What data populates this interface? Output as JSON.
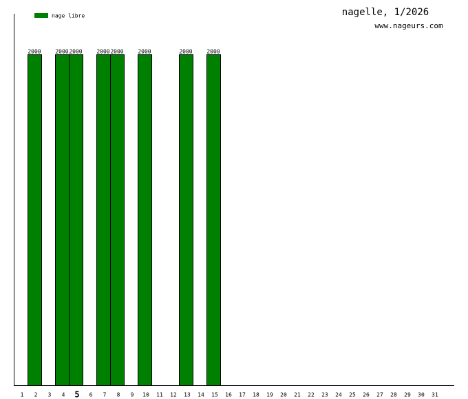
{
  "chart_data": {
    "type": "bar",
    "title": "nagelle, 1/2026",
    "subtitle": "www.nageurs.com",
    "categories": [
      "1",
      "2",
      "3",
      "4",
      "5",
      "6",
      "7",
      "8",
      "9",
      "10",
      "11",
      "12",
      "13",
      "14",
      "15",
      "16",
      "17",
      "18",
      "19",
      "20",
      "21",
      "22",
      "23",
      "24",
      "25",
      "26",
      "27",
      "28",
      "29",
      "30",
      "31"
    ],
    "series": [
      {
        "name": "nage libre",
        "color": "#008000",
        "values": [
          null,
          2000,
          null,
          2000,
          2000,
          null,
          2000,
          2000,
          null,
          2000,
          null,
          null,
          2000,
          null,
          2000,
          null,
          null,
          null,
          null,
          null,
          null,
          null,
          null,
          null,
          null,
          null,
          null,
          null,
          null,
          null,
          null
        ]
      }
    ],
    "ylim": [
      0,
      2245
    ],
    "highlight_index": 4,
    "legend": "top-left"
  }
}
